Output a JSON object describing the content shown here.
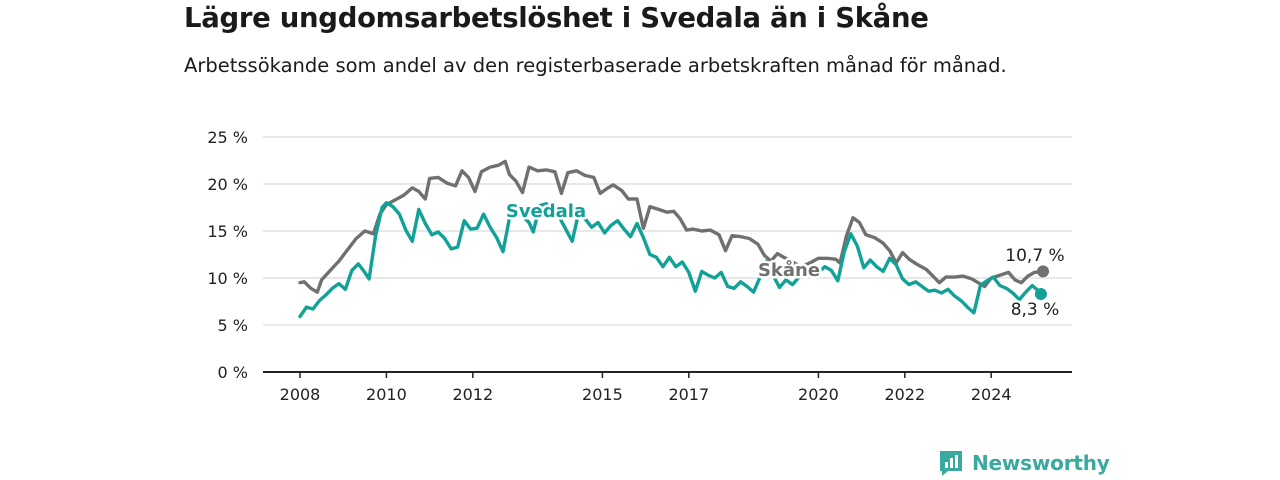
{
  "title": "Lägre ungdomsarbetslöshet i Svedala än i Skåne",
  "subtitle": "Arbetssökande som andel av den registerbaserade arbetskraften månad för månad.",
  "brand": {
    "name": "Newsworthy",
    "icon": "newsworthy-logo-icon",
    "color": "#3aa99f"
  },
  "chart_data": {
    "type": "line",
    "xlim": [
      2008,
      2025.3
    ],
    "ylim": [
      0,
      25
    ],
    "yticks": [
      0,
      5,
      10,
      15,
      20,
      25
    ],
    "ytick_labels": [
      "0 %",
      "5 %",
      "10 %",
      "15 %",
      "20 %",
      "25 %"
    ],
    "xticks": [
      2008,
      2010,
      2012,
      2015,
      2017,
      2020,
      2022,
      2024
    ],
    "xtick_labels": [
      "2008",
      "2010",
      "2012",
      "2015",
      "2017",
      "2020",
      "2022",
      "2024"
    ],
    "grid": true,
    "series": [
      {
        "name": "Skåne",
        "color": "#707070",
        "end_label": "10,7 %",
        "points": [
          [
            2008.0,
            9.5
          ],
          [
            2008.1,
            9.6
          ],
          [
            2008.25,
            8.9
          ],
          [
            2008.4,
            8.5
          ],
          [
            2008.5,
            9.8
          ],
          [
            2008.7,
            10.8
          ],
          [
            2008.9,
            11.8
          ],
          [
            2009.1,
            13.0
          ],
          [
            2009.3,
            14.2
          ],
          [
            2009.5,
            15.0
          ],
          [
            2009.7,
            14.7
          ],
          [
            2009.85,
            16.8
          ],
          [
            2010.0,
            17.8
          ],
          [
            2010.2,
            18.3
          ],
          [
            2010.4,
            18.8
          ],
          [
            2010.6,
            19.6
          ],
          [
            2010.75,
            19.2
          ],
          [
            2010.9,
            18.4
          ],
          [
            2011.0,
            20.6
          ],
          [
            2011.2,
            20.7
          ],
          [
            2011.4,
            20.1
          ],
          [
            2011.6,
            19.8
          ],
          [
            2011.75,
            21.4
          ],
          [
            2011.9,
            20.7
          ],
          [
            2012.05,
            19.2
          ],
          [
            2012.2,
            21.3
          ],
          [
            2012.4,
            21.8
          ],
          [
            2012.6,
            22.0
          ],
          [
            2012.75,
            22.4
          ],
          [
            2012.85,
            21.0
          ],
          [
            2013.0,
            20.3
          ],
          [
            2013.15,
            19.1
          ],
          [
            2013.3,
            21.8
          ],
          [
            2013.5,
            21.4
          ],
          [
            2013.7,
            21.5
          ],
          [
            2013.9,
            21.3
          ],
          [
            2014.05,
            19.0
          ],
          [
            2014.2,
            21.2
          ],
          [
            2014.4,
            21.4
          ],
          [
            2014.6,
            20.9
          ],
          [
            2014.8,
            20.7
          ],
          [
            2014.95,
            19.0
          ],
          [
            2015.1,
            19.5
          ],
          [
            2015.25,
            19.9
          ],
          [
            2015.45,
            19.3
          ],
          [
            2015.6,
            18.4
          ],
          [
            2015.8,
            18.4
          ],
          [
            2015.95,
            15.3
          ],
          [
            2016.1,
            17.6
          ],
          [
            2016.3,
            17.3
          ],
          [
            2016.5,
            17.0
          ],
          [
            2016.65,
            17.1
          ],
          [
            2016.8,
            16.3
          ],
          [
            2016.95,
            15.1
          ],
          [
            2017.1,
            15.2
          ],
          [
            2017.3,
            15.0
          ],
          [
            2017.5,
            15.1
          ],
          [
            2017.7,
            14.6
          ],
          [
            2017.85,
            12.9
          ],
          [
            2018.0,
            14.5
          ],
          [
            2018.2,
            14.4
          ],
          [
            2018.4,
            14.2
          ],
          [
            2018.6,
            13.6
          ],
          [
            2018.75,
            12.4
          ],
          [
            2018.9,
            11.8
          ],
          [
            2019.05,
            12.6
          ],
          [
            2019.2,
            12.2
          ],
          [
            2019.4,
            11.7
          ],
          [
            2019.6,
            11.2
          ],
          [
            2019.8,
            11.6
          ],
          [
            2020.0,
            12.1
          ],
          [
            2020.2,
            12.1
          ],
          [
            2020.4,
            12.0
          ],
          [
            2020.5,
            11.6
          ],
          [
            2020.65,
            14.5
          ],
          [
            2020.8,
            16.4
          ],
          [
            2020.95,
            15.9
          ],
          [
            2021.1,
            14.6
          ],
          [
            2021.3,
            14.3
          ],
          [
            2021.5,
            13.7
          ],
          [
            2021.65,
            12.9
          ],
          [
            2021.8,
            11.6
          ],
          [
            2021.95,
            12.7
          ],
          [
            2022.1,
            12.0
          ],
          [
            2022.3,
            11.4
          ],
          [
            2022.5,
            10.9
          ],
          [
            2022.65,
            10.2
          ],
          [
            2022.8,
            9.5
          ],
          [
            2022.95,
            10.1
          ],
          [
            2023.15,
            10.1
          ],
          [
            2023.35,
            10.2
          ],
          [
            2023.55,
            9.9
          ],
          [
            2023.7,
            9.5
          ],
          [
            2023.85,
            9.1
          ],
          [
            2024.0,
            10.0
          ],
          [
            2024.2,
            10.3
          ],
          [
            2024.4,
            10.6
          ],
          [
            2024.55,
            9.8
          ],
          [
            2024.7,
            9.5
          ],
          [
            2024.85,
            10.2
          ],
          [
            2025.0,
            10.6
          ],
          [
            2025.2,
            10.7
          ]
        ]
      },
      {
        "name": "Svedala",
        "color": "#12a197",
        "end_label": "8,3 %",
        "points": [
          [
            2008.0,
            5.9
          ],
          [
            2008.15,
            6.9
          ],
          [
            2008.3,
            6.7
          ],
          [
            2008.45,
            7.6
          ],
          [
            2008.6,
            8.2
          ],
          [
            2008.75,
            8.9
          ],
          [
            2008.9,
            9.4
          ],
          [
            2009.05,
            8.8
          ],
          [
            2009.2,
            10.8
          ],
          [
            2009.35,
            11.5
          ],
          [
            2009.5,
            10.6
          ],
          [
            2009.6,
            9.9
          ],
          [
            2009.75,
            14.5
          ],
          [
            2009.9,
            17.5
          ],
          [
            2010.0,
            18.0
          ],
          [
            2010.15,
            17.6
          ],
          [
            2010.3,
            16.8
          ],
          [
            2010.45,
            15.1
          ],
          [
            2010.6,
            13.9
          ],
          [
            2010.75,
            17.3
          ],
          [
            2010.9,
            15.8
          ],
          [
            2011.05,
            14.6
          ],
          [
            2011.2,
            14.9
          ],
          [
            2011.35,
            14.2
          ],
          [
            2011.5,
            13.1
          ],
          [
            2011.65,
            13.3
          ],
          [
            2011.8,
            16.1
          ],
          [
            2011.95,
            15.2
          ],
          [
            2012.1,
            15.3
          ],
          [
            2012.25,
            16.8
          ],
          [
            2012.4,
            15.4
          ],
          [
            2012.55,
            14.3
          ],
          [
            2012.7,
            12.8
          ],
          [
            2012.85,
            16.4
          ],
          [
            2013.0,
            17.1
          ],
          [
            2013.15,
            16.6
          ],
          [
            2013.3,
            15.9
          ],
          [
            2013.4,
            14.9
          ],
          [
            2013.55,
            17.7
          ],
          [
            2013.7,
            17.9
          ],
          [
            2013.85,
            17.3
          ],
          [
            2014.0,
            16.5
          ],
          [
            2014.15,
            15.2
          ],
          [
            2014.3,
            13.9
          ],
          [
            2014.45,
            16.9
          ],
          [
            2014.6,
            16.3
          ],
          [
            2014.75,
            15.4
          ],
          [
            2014.9,
            15.9
          ],
          [
            2015.05,
            14.8
          ],
          [
            2015.2,
            15.6
          ],
          [
            2015.35,
            16.1
          ],
          [
            2015.5,
            15.2
          ],
          [
            2015.65,
            14.4
          ],
          [
            2015.8,
            15.8
          ],
          [
            2015.95,
            14.3
          ],
          [
            2016.1,
            12.5
          ],
          [
            2016.25,
            12.2
          ],
          [
            2016.4,
            11.2
          ],
          [
            2016.55,
            12.2
          ],
          [
            2016.7,
            11.2
          ],
          [
            2016.85,
            11.7
          ],
          [
            2017.0,
            10.6
          ],
          [
            2017.15,
            8.6
          ],
          [
            2017.3,
            10.7
          ],
          [
            2017.45,
            10.3
          ],
          [
            2017.6,
            10.0
          ],
          [
            2017.75,
            10.6
          ],
          [
            2017.9,
            9.1
          ],
          [
            2018.05,
            8.9
          ],
          [
            2018.2,
            9.6
          ],
          [
            2018.35,
            9.1
          ],
          [
            2018.5,
            8.5
          ],
          [
            2018.65,
            10.1
          ],
          [
            2018.8,
            11.8
          ],
          [
            2018.95,
            10.3
          ],
          [
            2019.1,
            9.0
          ],
          [
            2019.25,
            9.8
          ],
          [
            2019.4,
            9.3
          ],
          [
            2019.55,
            10.1
          ],
          [
            2019.7,
            10.8
          ],
          [
            2019.85,
            11.4
          ],
          [
            2020.0,
            10.6
          ],
          [
            2020.15,
            11.2
          ],
          [
            2020.3,
            10.8
          ],
          [
            2020.45,
            9.7
          ],
          [
            2020.6,
            12.8
          ],
          [
            2020.75,
            14.7
          ],
          [
            2020.9,
            13.4
          ],
          [
            2021.05,
            11.1
          ],
          [
            2021.2,
            11.9
          ],
          [
            2021.35,
            11.2
          ],
          [
            2021.5,
            10.7
          ],
          [
            2021.65,
            12.1
          ],
          [
            2021.8,
            11.4
          ],
          [
            2021.95,
            9.9
          ],
          [
            2022.1,
            9.3
          ],
          [
            2022.25,
            9.6
          ],
          [
            2022.4,
            9.1
          ],
          [
            2022.55,
            8.6
          ],
          [
            2022.7,
            8.7
          ],
          [
            2022.85,
            8.4
          ],
          [
            2023.0,
            8.8
          ],
          [
            2023.15,
            8.1
          ],
          [
            2023.3,
            7.6
          ],
          [
            2023.45,
            6.9
          ],
          [
            2023.6,
            6.3
          ],
          [
            2023.75,
            9.2
          ],
          [
            2023.9,
            9.7
          ],
          [
            2024.05,
            10.1
          ],
          [
            2024.2,
            9.2
          ],
          [
            2024.35,
            8.9
          ],
          [
            2024.5,
            8.4
          ],
          [
            2024.65,
            7.7
          ],
          [
            2024.8,
            8.5
          ],
          [
            2024.95,
            9.2
          ],
          [
            2025.05,
            8.8
          ],
          [
            2025.15,
            8.3
          ]
        ]
      }
    ]
  }
}
